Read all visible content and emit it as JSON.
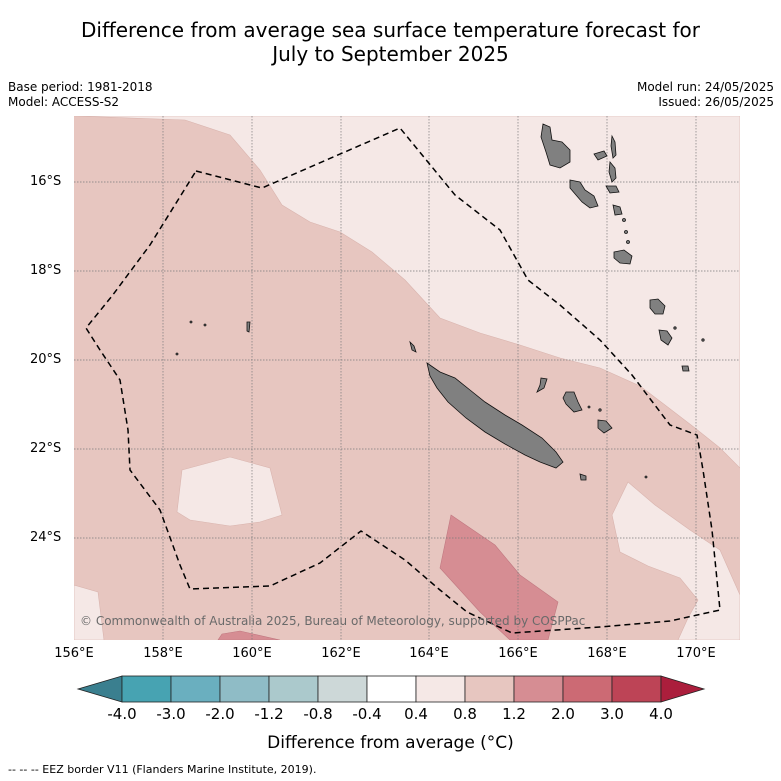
{
  "title_line1": "Difference from average sea surface temperature forecast for",
  "title_line2": "July to September 2025",
  "base_period": "Base period: 1981-2018",
  "model": "Model: ACCESS-S2",
  "model_run": "Model run: 24/05/2025",
  "issued": "Issued: 26/05/2025",
  "credit": "© Commonwealth of Australia 2025, Bureau of Meteorology, supported by COSPPac",
  "lat_labels": [
    "16°S",
    "18°S",
    "20°S",
    "22°S",
    "24°S"
  ],
  "lon_labels": [
    "156°E",
    "158°E",
    "160°E",
    "162°E",
    "164°E",
    "166°E",
    "168°E",
    "170°E"
  ],
  "colorbar": {
    "tick_labels": [
      "-4.0",
      "-3.0",
      "-2.0",
      "-1.2",
      "-0.8",
      "-0.4",
      "0.4",
      "0.8",
      "1.2",
      "2.0",
      "3.0",
      "4.0"
    ],
    "title": "Difference from average (°C)",
    "colors": [
      "#3a7f8f",
      "#47a3b2",
      "#6aafbf",
      "#8fbcc6",
      "#abc9cc",
      "#cdd8d8",
      "#ffffff",
      "#f5e8e6",
      "#e7c6c0",
      "#d68d93",
      "#cc6a74",
      "#bd4456",
      "#ab1e3c"
    ]
  },
  "footer": "-- -- -- EEZ border V11 (Flanders Marine Institute, 2019).",
  "map_colors": {
    "band_0_4_to_0_8": "#f5e8e6",
    "band_0_8_to_1_2": "#e7c6c0",
    "band_1_2_to_2_0": "#d68d93",
    "land": "#808080",
    "grid": "#7a7a7a"
  }
}
